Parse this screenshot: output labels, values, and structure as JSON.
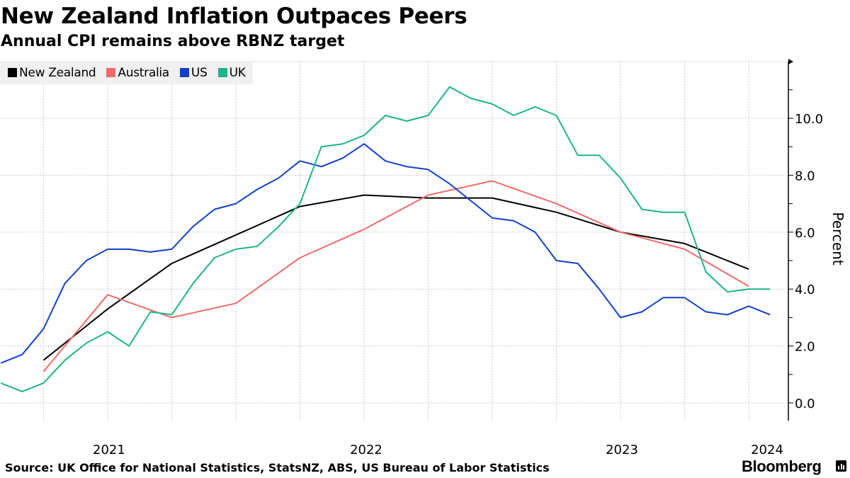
{
  "header": {
    "title": "New Zealand Inflation Outpaces Peers",
    "subtitle": "Annual CPI remains above RBNZ target"
  },
  "footer": {
    "source": "Source: UK Office for National Statistics, StatsNZ, ABS, US Bureau of Labor Statistics",
    "brand": "Bloomberg",
    "brand_icon": "bloomberg-chart-icon"
  },
  "chart_data": {
    "type": "line",
    "title": "New Zealand Inflation Outpaces Peers",
    "subtitle": "Annual CPI remains above RBNZ target",
    "xlabel": "",
    "ylabel": "Percent",
    "y_axis_side": "right",
    "ylim": [
      -0.6,
      12.0
    ],
    "yticks": [
      0.0,
      2.0,
      4.0,
      6.0,
      8.0,
      10.0
    ],
    "ytick_labels": [
      "0.0",
      "2.0",
      "4.0",
      "6.0",
      "8.0",
      "10.0"
    ],
    "xlim": [
      "2020-12-31",
      "2024-02-29"
    ],
    "x_tick_labels": [
      "2021",
      "2022",
      "2023",
      "2024"
    ],
    "grid": true,
    "legend_position": "top-left",
    "series": [
      {
        "name": "New Zealand",
        "color": "#000000",
        "frequency": "quarterly",
        "x": [
          "2021-03",
          "2021-06",
          "2021-09",
          "2021-12",
          "2022-03",
          "2022-06",
          "2022-09",
          "2022-12",
          "2023-03",
          "2023-06",
          "2023-09",
          "2023-12"
        ],
        "values": [
          1.5,
          3.3,
          4.9,
          5.9,
          6.9,
          7.3,
          7.2,
          7.2,
          6.7,
          6.0,
          5.6,
          4.7
        ]
      },
      {
        "name": "Australia",
        "color": "#f06a6a",
        "frequency": "quarterly",
        "x": [
          "2021-03",
          "2021-06",
          "2021-09",
          "2021-12",
          "2022-03",
          "2022-06",
          "2022-09",
          "2022-12",
          "2023-03",
          "2023-06",
          "2023-09",
          "2023-12"
        ],
        "values": [
          1.1,
          3.8,
          3.0,
          3.5,
          5.1,
          6.1,
          7.3,
          7.8,
          7.0,
          6.0,
          5.4,
          4.1
        ]
      },
      {
        "name": "US",
        "color": "#1240c8",
        "frequency": "monthly",
        "x": [
          "2021-01",
          "2021-02",
          "2021-03",
          "2021-04",
          "2021-05",
          "2021-06",
          "2021-07",
          "2021-08",
          "2021-09",
          "2021-10",
          "2021-11",
          "2021-12",
          "2022-01",
          "2022-02",
          "2022-03",
          "2022-04",
          "2022-05",
          "2022-06",
          "2022-07",
          "2022-08",
          "2022-09",
          "2022-10",
          "2022-11",
          "2022-12",
          "2023-01",
          "2023-02",
          "2023-03",
          "2023-04",
          "2023-05",
          "2023-06",
          "2023-07",
          "2023-08",
          "2023-09",
          "2023-10",
          "2023-11",
          "2023-12",
          "2024-01"
        ],
        "values": [
          1.4,
          1.7,
          2.6,
          4.2,
          5.0,
          5.4,
          5.4,
          5.3,
          5.4,
          6.2,
          6.8,
          7.0,
          7.5,
          7.9,
          8.5,
          8.3,
          8.6,
          9.1,
          8.5,
          8.3,
          8.2,
          7.7,
          7.1,
          6.5,
          6.4,
          6.0,
          5.0,
          4.9,
          4.0,
          3.0,
          3.2,
          3.7,
          3.7,
          3.2,
          3.1,
          3.4,
          3.1
        ]
      },
      {
        "name": "UK",
        "color": "#1db58a",
        "frequency": "monthly",
        "x": [
          "2021-01",
          "2021-02",
          "2021-03",
          "2021-04",
          "2021-05",
          "2021-06",
          "2021-07",
          "2021-08",
          "2021-09",
          "2021-10",
          "2021-11",
          "2021-12",
          "2022-01",
          "2022-02",
          "2022-03",
          "2022-04",
          "2022-05",
          "2022-06",
          "2022-07",
          "2022-08",
          "2022-09",
          "2022-10",
          "2022-11",
          "2022-12",
          "2023-01",
          "2023-02",
          "2023-03",
          "2023-04",
          "2023-05",
          "2023-06",
          "2023-07",
          "2023-08",
          "2023-09",
          "2023-10",
          "2023-11",
          "2023-12",
          "2024-01"
        ],
        "values": [
          0.7,
          0.4,
          0.7,
          1.5,
          2.1,
          2.5,
          2.0,
          3.2,
          3.1,
          4.2,
          5.1,
          5.4,
          5.5,
          6.2,
          7.0,
          9.0,
          9.1,
          9.4,
          10.1,
          9.9,
          10.1,
          11.1,
          10.7,
          10.5,
          10.1,
          10.4,
          10.1,
          8.7,
          8.7,
          7.9,
          6.8,
          6.7,
          6.7,
          4.6,
          3.9,
          4.0,
          4.0
        ]
      }
    ]
  }
}
